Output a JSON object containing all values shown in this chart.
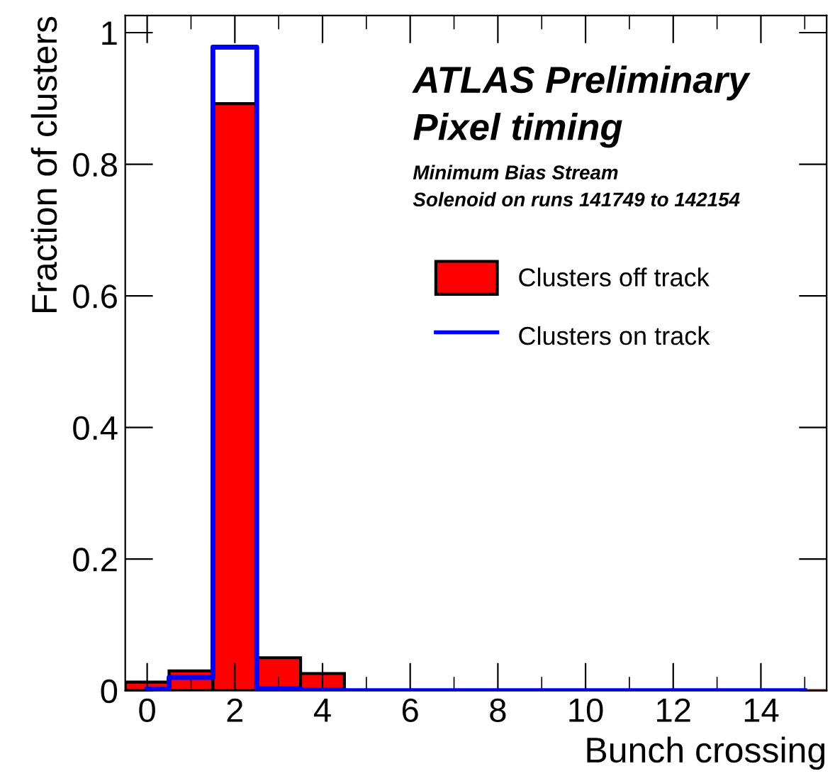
{
  "chart_data": {
    "type": "histogram",
    "xlabel": "Bunch crossing",
    "ylabel": "Fraction of clusters",
    "bins": [
      -0.5,
      0.5,
      1.5,
      2.5,
      3.5,
      4.5,
      5.5,
      6.5,
      7.5,
      8.5,
      9.5,
      10.5,
      11.5,
      12.5,
      13.5,
      14.5,
      15.5
    ],
    "series": [
      {
        "name": "Clusters off track",
        "type": "histogram",
        "color": "#ff0000",
        "values": [
          0.013,
          0.03,
          0.892,
          0.05,
          0.026,
          0,
          0,
          0,
          0,
          0,
          0,
          0,
          0,
          0,
          0,
          0
        ]
      },
      {
        "name": "Clusters on track",
        "type": "step",
        "color": "#0000ff",
        "x": [
          0,
          1,
          2,
          3,
          4,
          5,
          6,
          7,
          8,
          9,
          10,
          11,
          12,
          13,
          14,
          15
        ],
        "values": [
          0.002,
          0.02,
          0.978,
          0.003,
          0.001,
          0,
          0,
          0,
          0,
          0,
          0,
          0,
          0,
          0,
          0,
          0
        ]
      }
    ],
    "xlim": [
      -0.5,
      15.5
    ],
    "ylim": [
      0,
      1.026
    ],
    "xticks": [
      0,
      2,
      4,
      6,
      8,
      10,
      12,
      14
    ],
    "yticks": [
      0,
      0.2,
      0.4,
      0.6,
      0.8,
      1
    ],
    "annotations": [
      "ATLAS Preliminary",
      "Pixel timing",
      "Minimum Bias Stream",
      "Solenoid on runs 141749 to 142154"
    ],
    "legend": "right",
    "grid": false
  }
}
